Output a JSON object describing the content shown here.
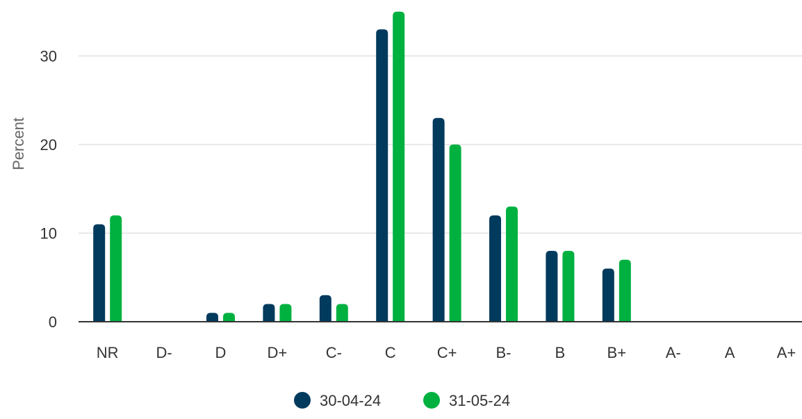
{
  "chart_data": {
    "type": "bar",
    "title": "",
    "xlabel": "",
    "ylabel": "Percent",
    "ylim": [
      0,
      35
    ],
    "yticks": [
      0,
      10,
      20,
      30
    ],
    "grid": true,
    "legend_position": "bottom",
    "categories": [
      "NR",
      "D-",
      "D",
      "D+",
      "C-",
      "C",
      "C+",
      "B-",
      "B",
      "B+",
      "A-",
      "A",
      "A+"
    ],
    "series": [
      {
        "name": "30-04-24",
        "color": "#003a5d",
        "values": [
          11,
          0,
          1,
          2,
          3,
          33,
          23,
          12,
          8,
          6,
          0,
          0,
          0
        ]
      },
      {
        "name": "31-05-24",
        "color": "#00b140",
        "values": [
          12,
          0,
          1,
          2,
          2,
          35,
          20,
          13,
          8,
          7,
          0,
          0,
          0
        ]
      }
    ]
  }
}
